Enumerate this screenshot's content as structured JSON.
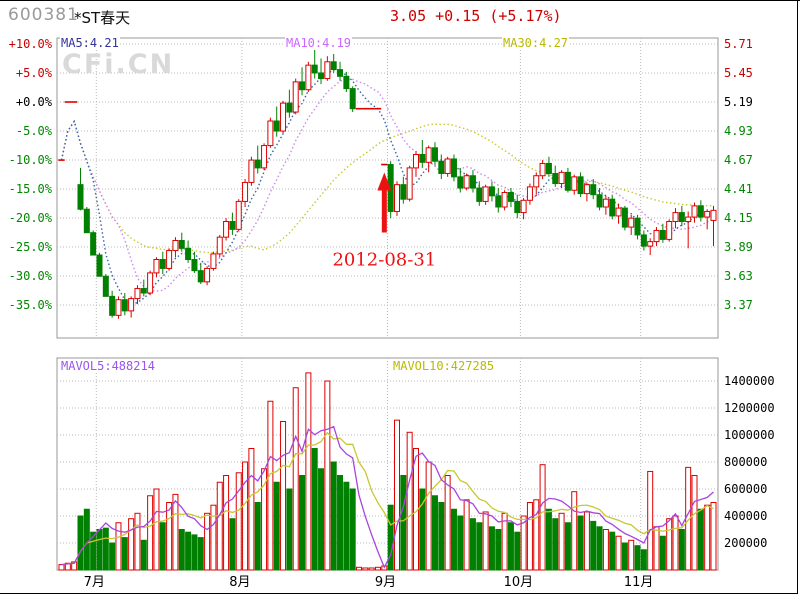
{
  "header": {
    "code": "600381",
    "name": "*ST春天",
    "quote": "3.05 +0.15 (+5.17%)"
  },
  "watermark": "CFi.CN",
  "ma_labels": {
    "ma5": "MA5:4.21",
    "ma10": "MA10:4.19",
    "ma30": "MA30:4.27",
    "mavol5": "MAVOL5:488214",
    "mavol10": "MAVOL10:427285"
  },
  "colors": {
    "up": "#dd0000",
    "down": "#008000",
    "grid": "#b8b8b8",
    "border": "#999999",
    "ma5_line": "#3366aa",
    "ma10_line": "#cc88ee",
    "ma30_line": "#c8c832",
    "mavol5_line": "#aa44dd",
    "mavol10_line": "#c8c832",
    "axis_red": "#cc0000",
    "axis_green": "#008800",
    "axis_black": "#000000",
    "annotation": "#ee1111",
    "month_label": "#000000",
    "frame": "#000000"
  },
  "chart_data": {
    "type": "candlestick+volume",
    "title": "600381 *ST春天",
    "base_price": 5.19,
    "price_axis_left": [
      "+10.0%",
      "+5.0%",
      "+0.0%",
      "-5.0%",
      "-10.0%",
      "-15.0%",
      "-20.0%",
      "-25.0%",
      "-30.0%",
      "-35.0%"
    ],
    "price_axis_right": [
      "5.71",
      "5.45",
      "5.19",
      "4.93",
      "4.67",
      "4.41",
      "4.15",
      "3.89",
      "3.63",
      "3.37"
    ],
    "pct_gridlines": [
      10,
      5,
      0,
      -5,
      -10,
      -15,
      -20,
      -25,
      -30,
      -35
    ],
    "volume_axis": [
      "1400000",
      "1200000",
      "1000000",
      "800000",
      "600000",
      "400000",
      "200000"
    ],
    "volume_gridlines": [
      1400000,
      1200000,
      1000000,
      800000,
      600000,
      400000,
      200000
    ],
    "months": [
      {
        "label": "7月",
        "index": 6
      },
      {
        "label": "8月",
        "index": 29
      },
      {
        "label": "9月",
        "index": 52
      },
      {
        "label": "10月",
        "index": 73
      },
      {
        "label": "11月",
        "index": 92
      }
    ],
    "annotation": {
      "text": "2012-08-31",
      "candle_index": 51
    },
    "legend_note": "red=up hollow, green=down filled; dotted MA5/MA10/MA30 on price; solid MAVOL5/MAVOL10 on volume",
    "candles": [
      [
        4.67,
        4.67,
        4.67,
        4.67,
        40000
      ],
      [
        5.19,
        5.19,
        5.19,
        5.19,
        50000
      ],
      [
        5.19,
        5.19,
        5.19,
        5.19,
        60000
      ],
      [
        4.45,
        4.6,
        4.22,
        4.23,
        400000
      ],
      [
        4.23,
        4.25,
        4.02,
        4.02,
        450000
      ],
      [
        4.02,
        4.04,
        3.82,
        3.82,
        280000
      ],
      [
        3.82,
        3.84,
        3.63,
        3.63,
        300000
      ],
      [
        3.63,
        3.65,
        3.45,
        3.45,
        310000
      ],
      [
        3.45,
        3.5,
        3.26,
        3.28,
        200000
      ],
      [
        3.28,
        3.45,
        3.25,
        3.42,
        350000
      ],
      [
        3.42,
        3.48,
        3.28,
        3.32,
        240000
      ],
      [
        3.32,
        3.45,
        3.26,
        3.43,
        380000
      ],
      [
        3.43,
        3.55,
        3.38,
        3.52,
        420000
      ],
      [
        3.52,
        3.6,
        3.45,
        3.48,
        220000
      ],
      [
        3.48,
        3.68,
        3.46,
        3.66,
        550000
      ],
      [
        3.66,
        3.8,
        3.62,
        3.78,
        600000
      ],
      [
        3.78,
        3.85,
        3.65,
        3.7,
        350000
      ],
      [
        3.7,
        3.88,
        3.68,
        3.86,
        500000
      ],
      [
        3.86,
        3.98,
        3.8,
        3.95,
        560000
      ],
      [
        3.95,
        4.02,
        3.85,
        3.88,
        300000
      ],
      [
        3.88,
        3.95,
        3.75,
        3.78,
        280000
      ],
      [
        3.78,
        3.85,
        3.66,
        3.68,
        260000
      ],
      [
        3.68,
        3.75,
        3.56,
        3.58,
        240000
      ],
      [
        3.58,
        3.72,
        3.55,
        3.7,
        420000
      ],
      [
        3.7,
        3.85,
        3.68,
        3.83,
        480000
      ],
      [
        3.83,
        4.0,
        3.8,
        3.98,
        650000
      ],
      [
        3.98,
        4.15,
        3.95,
        4.12,
        700000
      ],
      [
        4.12,
        4.2,
        4.0,
        4.05,
        380000
      ],
      [
        4.05,
        4.32,
        4.03,
        4.3,
        720000
      ],
      [
        4.3,
        4.5,
        4.25,
        4.47,
        800000
      ],
      [
        4.47,
        4.7,
        4.44,
        4.67,
        900000
      ],
      [
        4.67,
        4.8,
        4.55,
        4.6,
        500000
      ],
      [
        4.6,
        4.82,
        4.58,
        4.8,
        750000
      ],
      [
        4.8,
        5.05,
        4.78,
        5.02,
        1250000
      ],
      [
        5.02,
        5.15,
        4.88,
        4.93,
        650000
      ],
      [
        4.93,
        5.2,
        4.91,
        5.18,
        1100000
      ],
      [
        5.18,
        5.3,
        5.05,
        5.1,
        600000
      ],
      [
        5.1,
        5.4,
        5.08,
        5.37,
        1350000
      ],
      [
        5.37,
        5.5,
        5.25,
        5.3,
        700000
      ],
      [
        5.3,
        5.55,
        5.28,
        5.52,
        1460000
      ],
      [
        5.52,
        5.71,
        5.4,
        5.45,
        900000
      ],
      [
        5.45,
        5.58,
        5.35,
        5.4,
        750000
      ],
      [
        5.4,
        5.6,
        5.38,
        5.55,
        1400000
      ],
      [
        5.55,
        5.62,
        5.45,
        5.48,
        800000
      ],
      [
        5.48,
        5.55,
        5.38,
        5.42,
        700000
      ],
      [
        5.42,
        5.46,
        5.28,
        5.31,
        650000
      ],
      [
        5.31,
        5.33,
        5.1,
        5.13,
        600000
      ],
      [
        5.13,
        5.13,
        5.13,
        5.13,
        20000
      ],
      [
        5.13,
        5.13,
        5.13,
        5.13,
        15000
      ],
      [
        5.13,
        5.13,
        5.13,
        5.13,
        15000
      ],
      [
        5.13,
        5.13,
        5.13,
        5.13,
        20000
      ],
      [
        4.63,
        4.63,
        4.63,
        4.63,
        30000
      ],
      [
        4.63,
        4.66,
        4.15,
        4.21,
        480000
      ],
      [
        4.21,
        4.48,
        4.17,
        4.45,
        1110000
      ],
      [
        4.45,
        4.52,
        4.28,
        4.32,
        700000
      ],
      [
        4.32,
        4.62,
        4.3,
        4.6,
        1020000
      ],
      [
        4.6,
        4.75,
        4.52,
        4.72,
        900000
      ],
      [
        4.72,
        4.85,
        4.6,
        4.65,
        600000
      ],
      [
        4.65,
        4.8,
        4.56,
        4.78,
        800000
      ],
      [
        4.78,
        4.83,
        4.62,
        4.66,
        550000
      ],
      [
        4.66,
        4.72,
        4.5,
        4.55,
        500000
      ],
      [
        4.55,
        4.7,
        4.52,
        4.68,
        700000
      ],
      [
        4.68,
        4.72,
        4.48,
        4.52,
        450000
      ],
      [
        4.52,
        4.6,
        4.38,
        4.42,
        400000
      ],
      [
        4.42,
        4.55,
        4.4,
        4.53,
        520000
      ],
      [
        4.53,
        4.58,
        4.38,
        4.42,
        380000
      ],
      [
        4.42,
        4.48,
        4.26,
        4.3,
        350000
      ],
      [
        4.3,
        4.45,
        4.27,
        4.43,
        430000
      ],
      [
        4.43,
        4.48,
        4.3,
        4.35,
        320000
      ],
      [
        4.35,
        4.42,
        4.2,
        4.25,
        300000
      ],
      [
        4.25,
        4.4,
        4.22,
        4.38,
        420000
      ],
      [
        4.38,
        4.42,
        4.25,
        4.3,
        350000
      ],
      [
        4.3,
        4.36,
        4.15,
        4.2,
        280000
      ],
      [
        4.2,
        4.33,
        4.14,
        4.31,
        400000
      ],
      [
        4.31,
        4.46,
        4.27,
        4.43,
        500000
      ],
      [
        4.43,
        4.56,
        4.36,
        4.53,
        520000
      ],
      [
        4.53,
        4.67,
        4.5,
        4.64,
        780000
      ],
      [
        4.64,
        4.7,
        4.52,
        4.55,
        450000
      ],
      [
        4.55,
        4.62,
        4.43,
        4.46,
        380000
      ],
      [
        4.46,
        4.58,
        4.42,
        4.56,
        420000
      ],
      [
        4.56,
        4.6,
        4.38,
        4.4,
        350000
      ],
      [
        4.4,
        4.54,
        4.36,
        4.52,
        580000
      ],
      [
        4.52,
        4.56,
        4.34,
        4.37,
        400000
      ],
      [
        4.37,
        4.47,
        4.3,
        4.45,
        430000
      ],
      [
        4.45,
        4.5,
        4.32,
        4.36,
        360000
      ],
      [
        4.36,
        4.42,
        4.22,
        4.25,
        320000
      ],
      [
        4.25,
        4.35,
        4.18,
        4.32,
        300000
      ],
      [
        4.32,
        4.36,
        4.14,
        4.17,
        280000
      ],
      [
        4.17,
        4.28,
        4.1,
        4.24,
        250000
      ],
      [
        4.24,
        4.26,
        4.04,
        4.07,
        200000
      ],
      [
        4.07,
        4.18,
        4.0,
        4.15,
        220000
      ],
      [
        4.15,
        4.18,
        3.96,
        4.0,
        180000
      ],
      [
        4.0,
        4.04,
        3.86,
        3.9,
        150000
      ],
      [
        3.9,
        3.97,
        3.82,
        3.94,
        730000
      ],
      [
        3.94,
        4.07,
        3.9,
        4.04,
        320000
      ],
      [
        4.04,
        4.1,
        3.93,
        3.96,
        250000
      ],
      [
        3.96,
        4.14,
        3.94,
        4.12,
        380000
      ],
      [
        4.12,
        4.24,
        4.06,
        4.2,
        400000
      ],
      [
        4.2,
        4.26,
        4.08,
        4.12,
        300000
      ],
      [
        4.12,
        4.21,
        3.88,
        4.16,
        760000
      ],
      [
        4.16,
        4.29,
        4.11,
        4.26,
        700000
      ],
      [
        4.26,
        4.31,
        4.12,
        4.16,
        450000
      ],
      [
        4.16,
        4.23,
        4.05,
        4.21,
        480000
      ],
      [
        4.13,
        4.26,
        3.9,
        4.22,
        500000
      ]
    ]
  }
}
